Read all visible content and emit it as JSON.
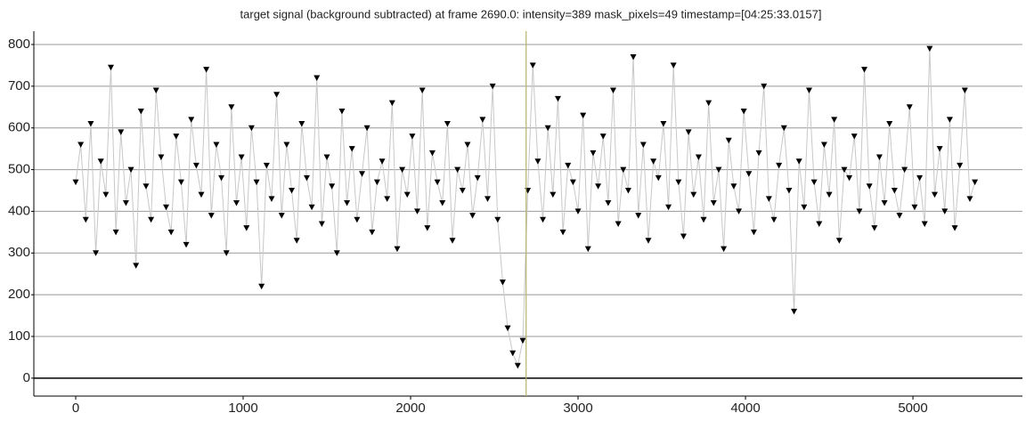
{
  "chart_data": {
    "type": "line",
    "title": "target signal (background subtracted) at frame 2690.0: intensity=389 mask_pixels=49 timestamp=[04:25:33.0157]",
    "x": [
      0,
      30,
      60,
      90,
      120,
      150,
      180,
      210,
      240,
      270,
      300,
      330,
      360,
      390,
      420,
      450,
      480,
      510,
      540,
      570,
      600,
      630,
      660,
      690,
      720,
      750,
      780,
      810,
      840,
      870,
      900,
      930,
      960,
      990,
      1020,
      1050,
      1080,
      1110,
      1140,
      1170,
      1200,
      1230,
      1260,
      1290,
      1320,
      1350,
      1380,
      1410,
      1440,
      1470,
      1500,
      1530,
      1560,
      1590,
      1620,
      1650,
      1680,
      1710,
      1740,
      1770,
      1800,
      1830,
      1860,
      1890,
      1920,
      1950,
      1980,
      2010,
      2040,
      2070,
      2100,
      2130,
      2160,
      2190,
      2220,
      2250,
      2280,
      2310,
      2340,
      2370,
      2400,
      2430,
      2460,
      2490,
      2520,
      2550,
      2580,
      2610,
      2640,
      2670,
      2700,
      2730,
      2760,
      2790,
      2820,
      2850,
      2880,
      2910,
      2940,
      2970,
      3000,
      3030,
      3060,
      3090,
      3120,
      3150,
      3180,
      3210,
      3240,
      3270,
      3300,
      3330,
      3360,
      3390,
      3420,
      3450,
      3480,
      3510,
      3540,
      3570,
      3600,
      3630,
      3660,
      3690,
      3720,
      3750,
      3780,
      3810,
      3840,
      3870,
      3900,
      3930,
      3960,
      3990,
      4020,
      4050,
      4080,
      4110,
      4140,
      4170,
      4200,
      4230,
      4260,
      4290,
      4320,
      4350,
      4380,
      4410,
      4440,
      4470,
      4500,
      4530,
      4560,
      4590,
      4620,
      4650,
      4680,
      4710,
      4740,
      4770,
      4800,
      4830,
      4860,
      4890,
      4920,
      4950,
      4980,
      5010,
      5040,
      5070,
      5100,
      5130,
      5160,
      5190,
      5220,
      5250,
      5280,
      5310,
      5340,
      5370
    ],
    "series": [
      {
        "color": "#000000",
        "line_color": "#c8c8c8",
        "values": [
          470,
          560,
          380,
          610,
          300,
          520,
          440,
          745,
          350,
          590,
          420,
          500,
          270,
          640,
          460,
          380,
          690,
          530,
          410,
          350,
          580,
          470,
          320,
          620,
          510,
          440,
          740,
          390,
          560,
          480,
          300,
          650,
          420,
          530,
          360,
          600,
          470,
          220,
          510,
          430,
          680,
          390,
          560,
          450,
          330,
          610,
          480,
          410,
          720,
          370,
          530,
          460,
          300,
          640,
          420,
          550,
          380,
          490,
          600,
          350,
          470,
          520,
          430,
          660,
          310,
          500,
          440,
          580,
          400,
          690,
          360,
          540,
          470,
          420,
          610,
          330,
          500,
          450,
          560,
          390,
          480,
          620,
          430,
          700,
          380,
          230,
          120,
          60,
          30,
          90,
          450,
          750,
          520,
          380,
          600,
          440,
          670,
          350,
          510,
          470,
          400,
          630,
          310,
          540,
          460,
          580,
          420,
          690,
          370,
          500,
          450,
          770,
          390,
          560,
          330,
          520,
          480,
          610,
          410,
          750,
          470,
          340,
          590,
          440,
          530,
          380,
          660,
          420,
          500,
          310,
          570,
          460,
          400,
          640,
          490,
          350,
          540,
          700,
          430,
          380,
          510,
          600,
          450,
          160,
          520,
          410,
          690,
          470,
          370,
          560,
          440,
          620,
          330,
          500,
          480,
          580,
          400,
          740,
          460,
          360,
          530,
          420,
          610,
          450,
          390,
          500,
          650,
          410,
          480,
          370,
          790,
          440,
          550,
          400,
          620,
          360,
          510,
          690,
          430,
          470
        ]
      }
    ],
    "xlim": [
      -250,
      5654
    ],
    "ylim": [
      -43,
      832
    ],
    "xticks": [
      0,
      1000,
      2000,
      3000,
      4000,
      5000
    ],
    "yticks": [
      0,
      100,
      200,
      300,
      400,
      500,
      600,
      700,
      800
    ],
    "grid": true,
    "vline_x": 2690,
    "vline_color": "#b5b36a"
  }
}
